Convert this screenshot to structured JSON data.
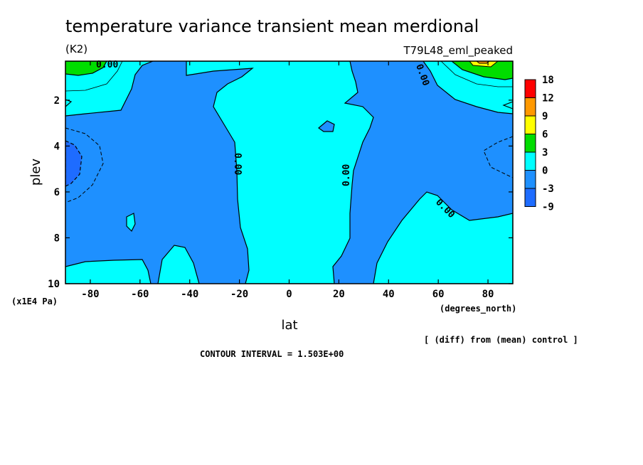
{
  "chart_data": {
    "type": "heatmap",
    "title": "temperature variance transient mean merdional",
    "units": "(K2)",
    "run_label": "T79L48_eml_peaked",
    "xlabel": "lat",
    "xlabel_units": "(degrees_north)",
    "ylabel": "plev",
    "ylabel_units": "(x1E4 Pa)",
    "x_ticks": [
      "-80",
      "-60",
      "-40",
      "-20",
      "0",
      "20",
      "40",
      "60",
      "80"
    ],
    "x_tick_values": [
      -80,
      -60,
      -40,
      -20,
      0,
      20,
      40,
      60,
      80
    ],
    "y_ticks": [
      "2",
      "4",
      "6",
      "8",
      "10"
    ],
    "y_tick_values": [
      2,
      4,
      6,
      8,
      10
    ],
    "xlim": [
      -90,
      90
    ],
    "ylim": [
      0.3,
      10
    ],
    "y_inverted": true,
    "colorbar": {
      "labels": [
        "18",
        "12",
        "9",
        "6",
        "3",
        "0",
        "-3",
        "-9"
      ],
      "colors": [
        "#ff0000",
        "#ff9900",
        "#ffff00",
        "#00dd00",
        "#00ffff",
        "#1e90ff",
        "#1e6cff"
      ]
    },
    "contour_labels": [
      "0.00",
      "0.00",
      "0.00",
      "0.00",
      "0.00",
      "0.00"
    ],
    "diff_note": "[ (diff) from (mean) control ]",
    "contour_interval": "CONTOUR INTERVAL = 1.503E+00",
    "fill_colors": {
      "neg": "#1e90ff",
      "zero": "#00ffff",
      "pos": "#00dd00",
      "strong_neg": "#1e6cff"
    }
  }
}
